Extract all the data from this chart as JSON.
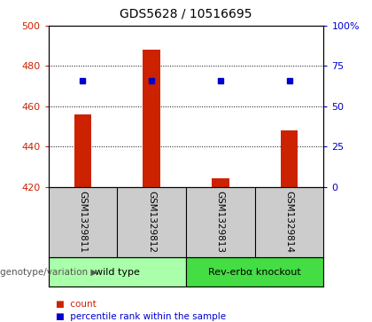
{
  "title": "GDS5628 / 10516695",
  "samples": [
    "GSM1329811",
    "GSM1329812",
    "GSM1329813",
    "GSM1329814"
  ],
  "counts": [
    456,
    488,
    424,
    448
  ],
  "percentiles": [
    66,
    66,
    66,
    66
  ],
  "bar_color": "#cc2200",
  "dot_color": "#0000cc",
  "ylim_left": [
    420,
    500
  ],
  "ylim_right": [
    0,
    100
  ],
  "yticks_left": [
    420,
    440,
    460,
    480,
    500
  ],
  "yticks_right": [
    0,
    25,
    50,
    75,
    100
  ],
  "ytick_labels_right": [
    "0",
    "25",
    "50",
    "75",
    "100%"
  ],
  "grid_values": [
    440,
    460,
    480
  ],
  "groups": [
    {
      "label": "wild type",
      "indices": [
        0,
        1
      ],
      "color": "#aaffaa"
    },
    {
      "label": "Rev-erbα knockout",
      "indices": [
        2,
        3
      ],
      "color": "#44dd44"
    }
  ],
  "group_label": "genotype/variation",
  "legend_count": "count",
  "legend_percentile": "percentile rank within the sample",
  "title_fontsize": 10,
  "tick_fontsize": 8,
  "sample_fontsize": 7.5,
  "group_fontsize": 8,
  "legend_fontsize": 7.5
}
